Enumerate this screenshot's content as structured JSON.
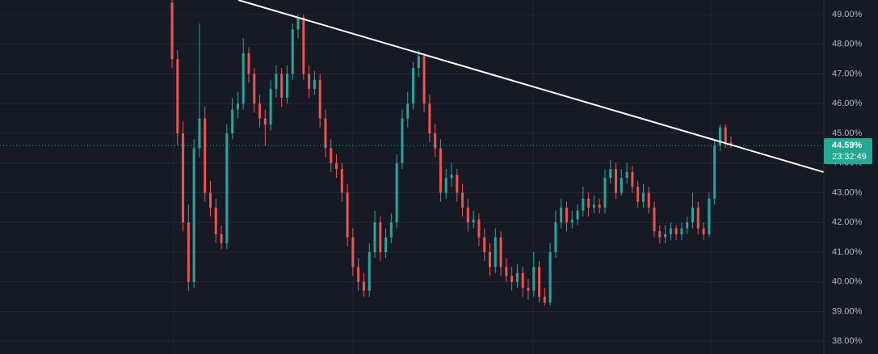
{
  "chart_data": {
    "type": "candlestick",
    "open": [
      49.4,
      47.5,
      45,
      42,
      40,
      44.5,
      45.5,
      43,
      42.5,
      41.6,
      41.3,
      45,
      45.8,
      46,
      47.7,
      47,
      46,
      45.5,
      45.3,
      46.5,
      47,
      46.2,
      47,
      48.5,
      48.9,
      47,
      46.5,
      46.8,
      45.5,
      44.5,
      44,
      43.8,
      43,
      41.5,
      40.5,
      40,
      39.7,
      41,
      42,
      41,
      41.5,
      42,
      44,
      45.5,
      46,
      47.2,
      47.6,
      46,
      45,
      44.5,
      43,
      43.5,
      43.6,
      43,
      42.5,
      42,
      42.1,
      41.5,
      41,
      40.5,
      41.5,
      40.5,
      40.2,
      40,
      40.3,
      39.8,
      39.7,
      40.5,
      39.5,
      39.3,
      41,
      42,
      42.5,
      42,
      42.1,
      42.4,
      42.8,
      42.5,
      42.6,
      42.5,
      43.5,
      43.8,
      43,
      43.5,
      43.7,
      43.2,
      42.7,
      43,
      42.5,
      41.7,
      41.5,
      41.6,
      41.8,
      41.6,
      41.8,
      42,
      42.5,
      41.8,
      41.6,
      42.8,
      44.6,
      45.2,
      44.7
    ],
    "high": [
      49.5,
      47.8,
      45.4,
      42.6,
      44.8,
      48.7,
      45.9,
      43.4,
      42.8,
      41.9,
      45.3,
      46.2,
      46.4,
      48.2,
      47.9,
      47.2,
      46.3,
      45.8,
      46.8,
      47.3,
      47.2,
      47.3,
      48.7,
      49,
      49,
      47.3,
      47.1,
      47,
      45.8,
      44.8,
      44.3,
      44,
      43.3,
      41.8,
      40.8,
      40.3,
      41.3,
      42.4,
      42.2,
      41.8,
      42.3,
      44.3,
      45.8,
      46.4,
      47.4,
      47.8,
      47.7,
      46.3,
      45.3,
      44.8,
      43.8,
      44,
      43.8,
      43.3,
      42.8,
      42.4,
      42.3,
      41.8,
      41.3,
      41.8,
      41.7,
      40.8,
      40.5,
      40.6,
      40.5,
      40.1,
      41,
      40.7,
      39.8,
      41.3,
      42.4,
      42.8,
      42.7,
      42.4,
      42.6,
      43.2,
      43,
      42.9,
      42.8,
      43.8,
      44.1,
      44,
      43.8,
      44,
      43.9,
      43.4,
      43.3,
      43.2,
      42.7,
      41.9,
      41.9,
      42,
      41.9,
      42,
      42.2,
      43,
      42.7,
      42,
      43,
      44.8,
      45.3,
      45.3,
      44.9
    ],
    "low": [
      47.2,
      44.6,
      41.7,
      39.7,
      39.8,
      44.2,
      42.7,
      42.2,
      41.3,
      41.1,
      41.1,
      44.8,
      45.5,
      45.8,
      46.7,
      45.7,
      45.2,
      44.6,
      45.1,
      46.2,
      45.9,
      46,
      46.8,
      48.2,
      46.8,
      46.2,
      46.3,
      45.2,
      44.2,
      43.7,
      43.5,
      42.7,
      41.2,
      40.2,
      39.7,
      39.5,
      39.5,
      40.8,
      40.7,
      40.8,
      41.3,
      41.8,
      43.8,
      45.2,
      45.8,
      46.9,
      45.7,
      44.7,
      44.2,
      42.7,
      42.8,
      43.2,
      42.7,
      42.2,
      41.7,
      41.8,
      41.2,
      40.7,
      40.2,
      40.3,
      40.2,
      40,
      39.7,
      39.8,
      39.5,
      39.4,
      39.5,
      39.3,
      39.2,
      39.2,
      40.8,
      41.8,
      41.7,
      41.8,
      41.9,
      42.2,
      42.2,
      42.3,
      42.3,
      42.3,
      43.3,
      42.8,
      42.9,
      43.3,
      43,
      42.5,
      42.5,
      42.3,
      41.5,
      41.3,
      41.3,
      41.4,
      41.4,
      41.4,
      41.6,
      41.8,
      41.6,
      41.4,
      41.5,
      42.6,
      44.4,
      44.5,
      44.5
    ],
    "close": [
      47.5,
      45,
      42,
      40,
      44.5,
      45.5,
      43,
      42.5,
      41.6,
      41.3,
      45,
      45.8,
      46,
      47.7,
      47,
      46,
      45.5,
      45.3,
      46.5,
      47,
      46.2,
      47,
      48.5,
      48.9,
      47,
      46.5,
      46.8,
      45.5,
      44.5,
      44,
      43.8,
      43,
      41.5,
      40.5,
      40,
      39.7,
      41,
      42,
      41,
      41.5,
      42,
      44,
      45.5,
      46,
      47.2,
      47.6,
      46,
      45,
      44.5,
      43,
      43.5,
      43.6,
      43,
      42.5,
      42,
      42.1,
      41.5,
      41,
      40.5,
      41.5,
      40.5,
      40.2,
      40,
      40.3,
      39.8,
      39.7,
      40.5,
      39.5,
      39.3,
      41,
      42,
      42.5,
      42,
      42.1,
      42.4,
      42.8,
      42.5,
      42.6,
      42.5,
      43.5,
      43.8,
      43,
      43.5,
      43.7,
      43.2,
      42.7,
      43,
      42.5,
      41.7,
      41.5,
      41.6,
      41.8,
      41.6,
      41.8,
      42,
      42.5,
      41.8,
      41.6,
      42.8,
      44.6,
      45.2,
      44.7,
      44.59
    ],
    "up_color": "#26a69a",
    "down_color": "#ef5350",
    "ylim": [
      37.57,
      49.49
    ],
    "yticks": [
      {
        "value": 38,
        "label": "38.00%"
      },
      {
        "value": 39,
        "label": "39.00%"
      },
      {
        "value": 40,
        "label": "40.00%"
      },
      {
        "value": 41,
        "label": "41.00%"
      },
      {
        "value": 42,
        "label": "42.00%"
      },
      {
        "value": 43,
        "label": "43.00%"
      },
      {
        "value": 44,
        "label": "44.00%"
      },
      {
        "value": 45,
        "label": "45.00%"
      },
      {
        "value": 46,
        "label": "46.00%"
      },
      {
        "value": 47,
        "label": "47.00%"
      },
      {
        "value": 48,
        "label": "48.00%"
      },
      {
        "value": 49,
        "label": "49.00%"
      }
    ],
    "grid": true,
    "last_price": {
      "value": 44.59,
      "label": "44.59%"
    },
    "countdown": "23:32:49",
    "last_color": "#22ab94"
  }
}
